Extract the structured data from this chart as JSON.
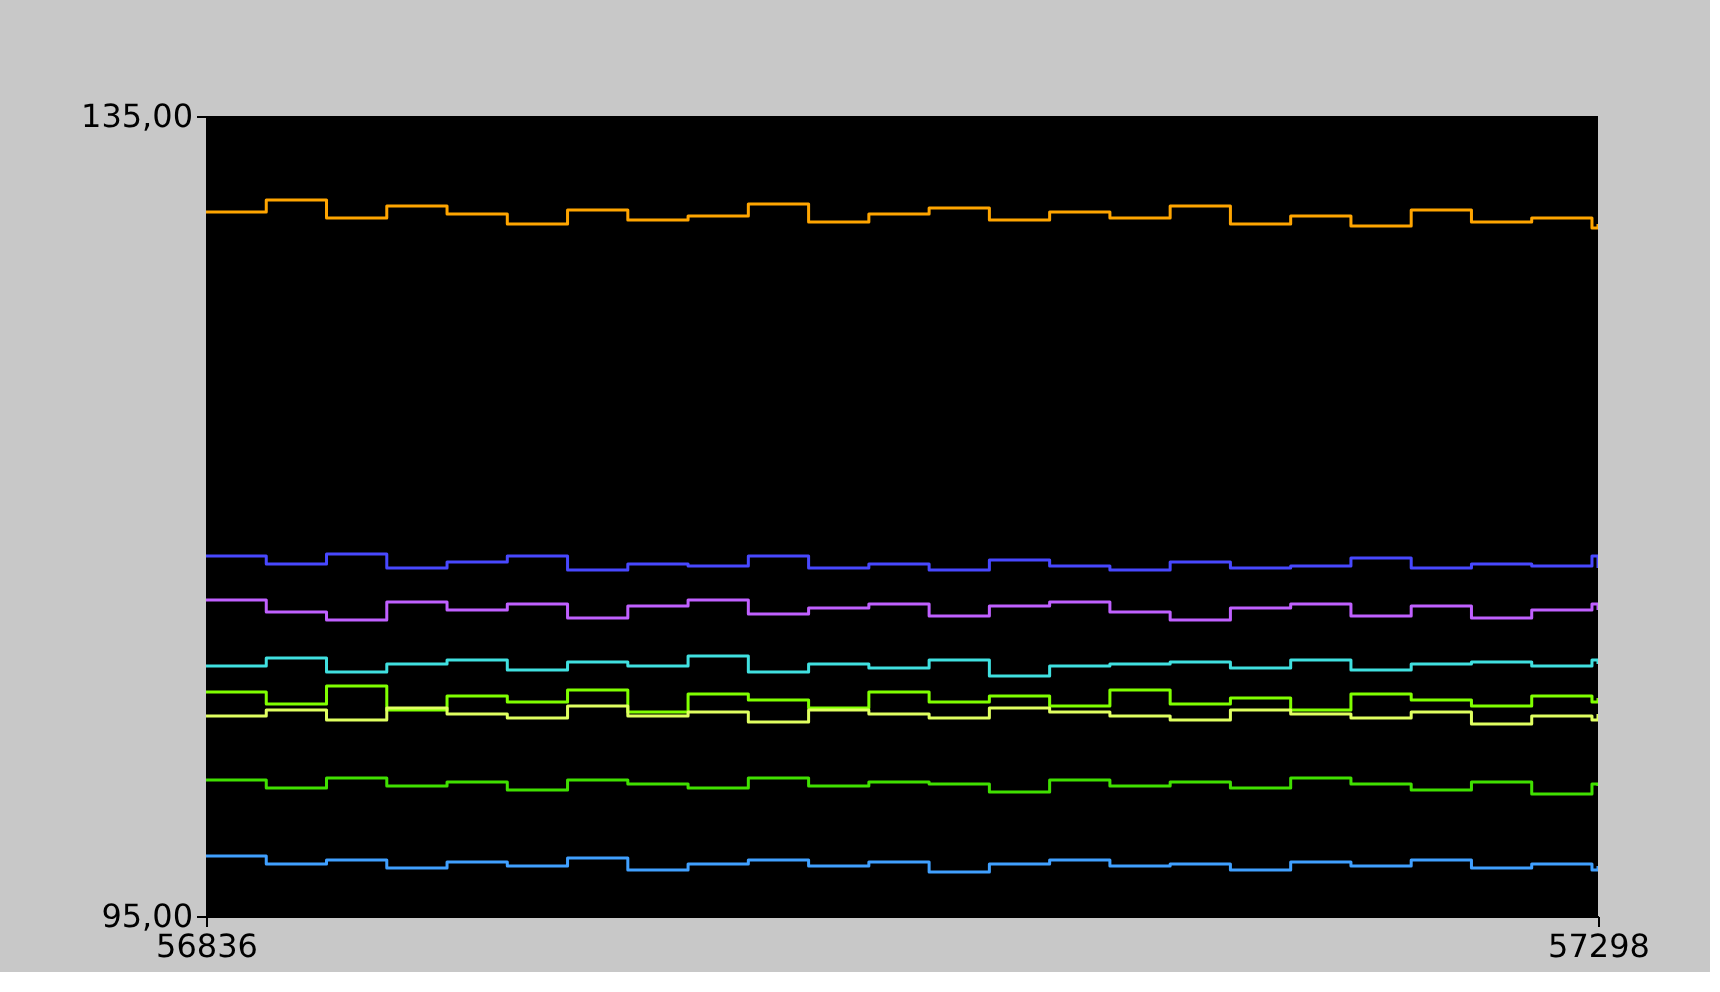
{
  "chart_data": {
    "type": "step",
    "x": [
      56836,
      56856,
      56876,
      56896,
      56916,
      56936,
      56956,
      56976,
      56996,
      57016,
      57036,
      57056,
      57076,
      57096,
      57116,
      57136,
      57156,
      57176,
      57196,
      57216,
      57236,
      57256,
      57276,
      57296,
      57298
    ],
    "xlim": [
      56836,
      57298
    ],
    "xticks": [
      56836,
      57298
    ],
    "ylim": [
      95,
      135
    ],
    "yticks": [
      {
        "value": 95,
        "label": "95,00"
      },
      {
        "value": 135,
        "label": "135,00"
      }
    ],
    "grid": false,
    "series": [
      {
        "color": "#ffa500",
        "values": [
          130.2,
          130.8,
          129.9,
          130.5,
          130.1,
          129.6,
          130.3,
          129.8,
          130.0,
          130.6,
          129.7,
          130.1,
          130.4,
          129.8,
          130.2,
          129.9,
          130.5,
          129.6,
          130.0,
          129.5,
          130.3,
          129.7,
          129.9,
          129.4,
          129.6
        ]
      },
      {
        "color": "#4848ff",
        "values": [
          113.0,
          112.6,
          113.1,
          112.4,
          112.7,
          113.0,
          112.3,
          112.6,
          112.5,
          113.0,
          112.4,
          112.6,
          112.3,
          112.8,
          112.5,
          112.3,
          112.7,
          112.4,
          112.5,
          112.9,
          112.4,
          112.6,
          112.5,
          113.0,
          112.4
        ]
      },
      {
        "color": "#c060ff",
        "values": [
          110.8,
          110.2,
          109.8,
          110.7,
          110.3,
          110.6,
          109.9,
          110.5,
          110.8,
          110.1,
          110.4,
          110.6,
          110.0,
          110.5,
          110.7,
          110.2,
          109.8,
          110.4,
          110.6,
          110.0,
          110.5,
          109.9,
          110.3,
          110.6,
          110.3
        ]
      },
      {
        "color": "#40e0e0",
        "values": [
          107.5,
          107.9,
          107.2,
          107.6,
          107.8,
          107.3,
          107.7,
          107.5,
          108.0,
          107.2,
          107.6,
          107.4,
          107.8,
          107.0,
          107.5,
          107.6,
          107.7,
          107.4,
          107.8,
          107.3,
          107.6,
          107.7,
          107.5,
          107.8,
          107.6
        ]
      },
      {
        "color": "#80ff00",
        "values": [
          106.2,
          105.6,
          106.5,
          105.3,
          106.0,
          105.7,
          106.3,
          105.2,
          106.1,
          105.8,
          105.4,
          106.2,
          105.7,
          106.0,
          105.5,
          106.3,
          105.6,
          105.9,
          105.3,
          106.1,
          105.8,
          105.5,
          106.0,
          105.7,
          105.9
        ]
      },
      {
        "color": "#e0ff60",
        "values": [
          105.0,
          105.3,
          104.8,
          105.4,
          105.1,
          104.9,
          105.5,
          105.0,
          105.2,
          104.7,
          105.3,
          105.1,
          104.9,
          105.4,
          105.2,
          105.0,
          104.8,
          105.3,
          105.1,
          104.9,
          105.2,
          104.6,
          105.0,
          104.8,
          105.1
        ]
      },
      {
        "color": "#40e000",
        "values": [
          101.8,
          101.4,
          101.9,
          101.5,
          101.7,
          101.3,
          101.8,
          101.6,
          101.4,
          101.9,
          101.5,
          101.7,
          101.6,
          101.2,
          101.8,
          101.5,
          101.7,
          101.4,
          101.9,
          101.6,
          101.3,
          101.7,
          101.1,
          101.6,
          101.5
        ]
      },
      {
        "color": "#40a0ff",
        "values": [
          98.0,
          97.6,
          97.8,
          97.4,
          97.7,
          97.5,
          97.9,
          97.3,
          97.6,
          97.8,
          97.5,
          97.7,
          97.2,
          97.6,
          97.8,
          97.5,
          97.6,
          97.3,
          97.7,
          97.5,
          97.8,
          97.4,
          97.6,
          97.3,
          97.5
        ]
      }
    ]
  }
}
